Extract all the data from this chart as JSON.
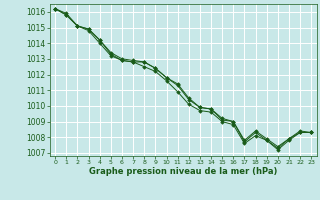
{
  "background_color": "#c8e8e8",
  "grid_color": "#ffffff",
  "line_color": "#1a5c1a",
  "marker_color": "#1a5c1a",
  "xlabel": "Graphe pression niveau de la mer (hPa)",
  "xlabel_color": "#1a5c1a",
  "ylim": [
    1006.8,
    1016.5
  ],
  "xlim": [
    -0.5,
    23.5
  ],
  "yticks": [
    1007,
    1008,
    1009,
    1010,
    1011,
    1012,
    1013,
    1014,
    1015,
    1016
  ],
  "xticks": [
    0,
    1,
    2,
    3,
    4,
    5,
    6,
    7,
    8,
    9,
    10,
    11,
    12,
    13,
    14,
    15,
    16,
    17,
    18,
    19,
    20,
    21,
    22,
    23
  ],
  "series": [
    [
      1016.2,
      1015.8,
      1015.1,
      1014.9,
      1014.2,
      1013.3,
      1012.9,
      1012.8,
      1012.8,
      1012.4,
      1011.8,
      1011.3,
      1010.4,
      1009.9,
      1009.8,
      1009.1,
      1009.0,
      1007.7,
      1008.3,
      1007.8,
      1007.2,
      1007.8,
      1008.3,
      1008.3
    ],
    [
      1016.2,
      1015.8,
      1015.1,
      1014.8,
      1014.0,
      1013.2,
      1012.9,
      1012.8,
      1012.5,
      1012.2,
      1011.6,
      1010.9,
      1010.1,
      1009.7,
      1009.6,
      1009.0,
      1008.8,
      1007.6,
      1008.1,
      1007.8,
      1007.3,
      1007.9,
      1008.3,
      1008.3
    ],
    [
      1016.2,
      1015.9,
      1015.1,
      1014.9,
      1014.2,
      1013.4,
      1013.0,
      1012.9,
      1012.8,
      1012.4,
      1011.8,
      1011.4,
      1010.5,
      1009.9,
      1009.8,
      1009.2,
      1009.0,
      1007.8,
      1008.4,
      1007.9,
      1007.4,
      1007.9,
      1008.4,
      1008.3
    ]
  ],
  "ytick_fontsize": 5.5,
  "xtick_fontsize": 4.5,
  "xlabel_fontsize": 6.0
}
